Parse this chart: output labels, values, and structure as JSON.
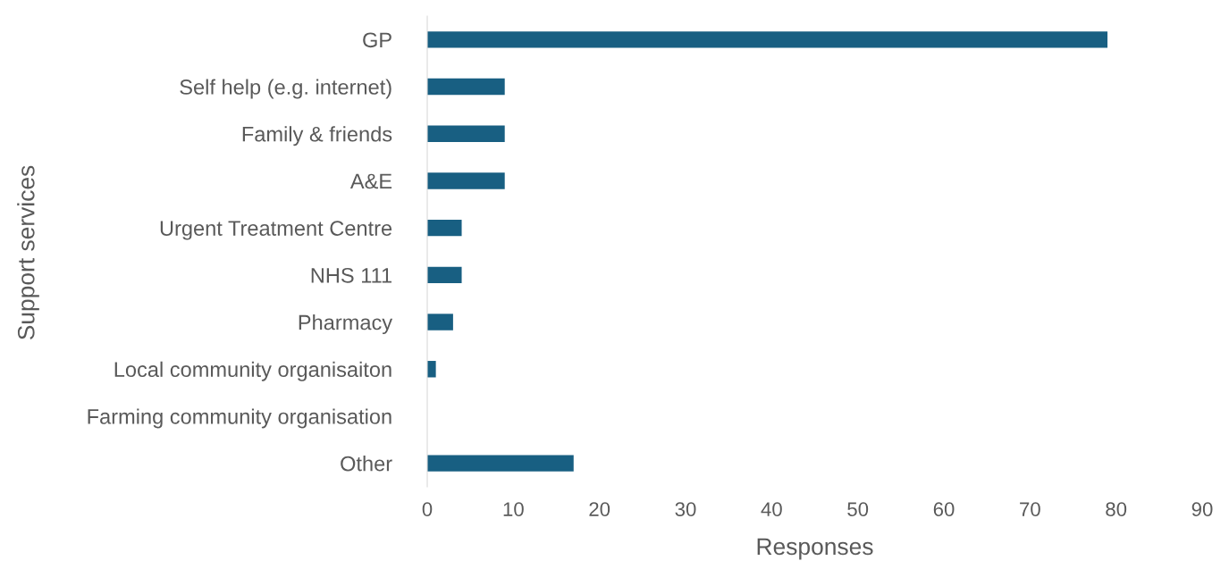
{
  "chart_data": {
    "type": "bar",
    "orientation": "horizontal",
    "xlabel": "Responses",
    "ylabel": "Support services",
    "categories": [
      "GP",
      "Self help (e.g. internet)",
      "Family & friends",
      "A&E",
      "Urgent Treatment Centre",
      "NHS 111",
      "Pharmacy",
      "Local community organisaiton",
      "Farming community organisation",
      "Other"
    ],
    "values": [
      79,
      9,
      9,
      9,
      4,
      4,
      3,
      1,
      0,
      17
    ],
    "color": "#185f82",
    "xlim": [
      0,
      90
    ],
    "xticks": [
      0,
      10,
      20,
      30,
      40,
      50,
      60,
      70,
      80,
      90
    ],
    "grid": false,
    "legend": false
  }
}
